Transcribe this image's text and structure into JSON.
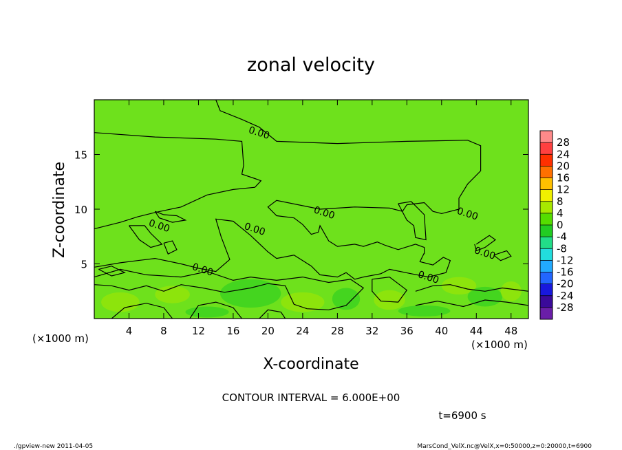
{
  "chart_data": {
    "type": "heatmap",
    "title": "zonal velocity",
    "xlabel": "X-coordinate",
    "ylabel": "Z-coordinate",
    "x_unit": "(×1000 m)",
    "x_ticks": [
      4,
      8,
      12,
      16,
      20,
      24,
      28,
      32,
      36,
      40,
      44,
      48
    ],
    "y_ticks": [
      5,
      10,
      15
    ],
    "xlim": [
      0,
      50
    ],
    "ylim": [
      0,
      20
    ],
    "colorbar": {
      "levels": [
        28,
        24,
        20,
        16,
        12,
        8,
        4,
        0,
        -4,
        -8,
        -12,
        -16,
        -20,
        -24,
        -28
      ],
      "colors": [
        "#ff8a8a",
        "#ff4040",
        "#ff3000",
        "#ff7000",
        "#ffc000",
        "#f0f000",
        "#a8e800",
        "#55dd00",
        "#22cc22",
        "#22dd88",
        "#22dddd",
        "#22aaff",
        "#2266ff",
        "#1818dd",
        "#3a0a9a",
        "#6a1ea8"
      ]
    },
    "contour_labels": [
      {
        "text": "0.00",
        "x": 19,
        "z": 17.0
      },
      {
        "text": "0.00",
        "x": 7.5,
        "z": 8.5
      },
      {
        "text": "0.00",
        "x": 18.5,
        "z": 8.2
      },
      {
        "text": "0.00",
        "x": 26.5,
        "z": 9.7
      },
      {
        "text": "0.00",
        "x": 43,
        "z": 9.6
      },
      {
        "text": "0.00",
        "x": 45,
        "z": 6.0
      },
      {
        "text": "0.00",
        "x": 12.5,
        "z": 4.5
      },
      {
        "text": "0.00",
        "x": 38.5,
        "z": 3.8
      }
    ],
    "contour_interval": "CONTOUR INTERVAL = 6.000E+00",
    "time": "t=6900 s"
  },
  "footer": {
    "left": "./gpview-new   2011-04-05",
    "right": "MarsCond_VelX.nc@VelX,x=0:50000,z=0:20000,t=6900"
  }
}
